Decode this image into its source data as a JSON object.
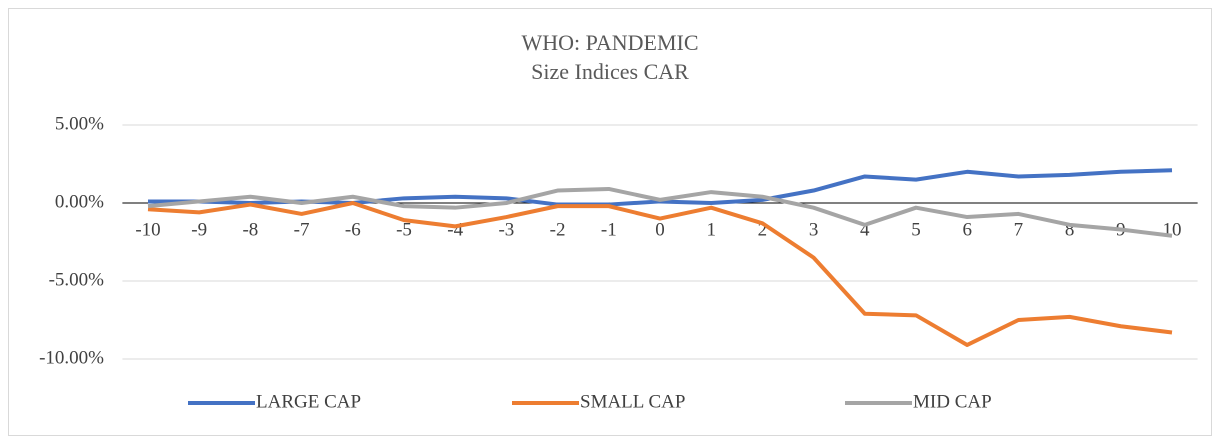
{
  "chart_data": {
    "type": "line",
    "title": "WHO: PANDEMIC",
    "subtitle": "Size Indices CAR",
    "x": [
      -10,
      -9,
      -8,
      -7,
      -6,
      -5,
      -4,
      -3,
      -2,
      -1,
      0,
      1,
      2,
      3,
      4,
      5,
      6,
      7,
      8,
      9,
      10
    ],
    "xlim": [
      -10.5,
      10.5
    ],
    "ylim": [
      -10,
      5
    ],
    "yticks": [
      {
        "value": 5,
        "label": "5.00%"
      },
      {
        "value": 0,
        "label": "0.00%"
      },
      {
        "value": -5,
        "label": "-5.00%"
      },
      {
        "value": -10,
        "label": "-10.00%"
      }
    ],
    "grid": true,
    "legend": "bottom",
    "series": [
      {
        "name": "LARGE CAP",
        "color": "#4472c4",
        "values": [
          0.1,
          0.1,
          0.0,
          0.1,
          0.0,
          0.3,
          0.4,
          0.3,
          -0.1,
          -0.1,
          0.1,
          0.0,
          0.2,
          0.8,
          1.7,
          1.5,
          2.0,
          1.7,
          1.8,
          2.0,
          2.1
        ]
      },
      {
        "name": "SMALL CAP",
        "color": "#ed7d31",
        "values": [
          -0.4,
          -0.6,
          -0.1,
          -0.7,
          0.0,
          -1.1,
          -1.5,
          -0.9,
          -0.2,
          -0.2,
          -1.0,
          -0.3,
          -1.3,
          -3.5,
          -7.1,
          -7.2,
          -9.1,
          -7.5,
          -7.3,
          -7.9,
          -8.3
        ]
      },
      {
        "name": "MID CAP",
        "color": "#a5a5a5",
        "values": [
          -0.2,
          0.1,
          0.4,
          0.0,
          0.4,
          -0.2,
          -0.3,
          0.0,
          0.8,
          0.9,
          0.2,
          0.7,
          0.4,
          -0.3,
          -1.4,
          -0.3,
          -0.9,
          -0.7,
          -1.4,
          -1.7,
          -2.1
        ]
      }
    ]
  }
}
